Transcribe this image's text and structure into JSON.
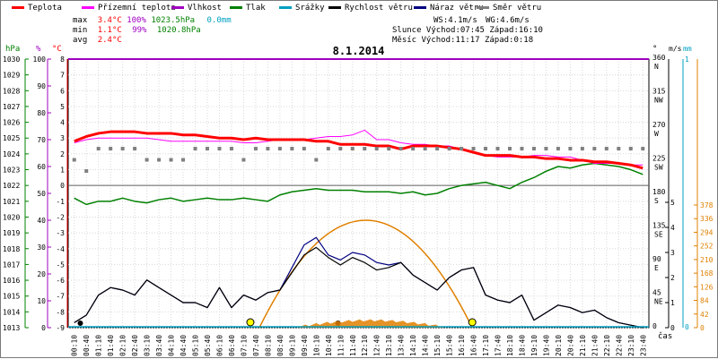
{
  "legend": {
    "items": [
      {
        "key": "teplota",
        "label": "Teplota",
        "color": "#ff0000"
      },
      {
        "key": "prizemni",
        "label": "Přízemní teplota",
        "color": "#ff00ff"
      },
      {
        "key": "vlhkost",
        "label": "Vlhkost",
        "color": "#a000c0"
      },
      {
        "key": "tlak",
        "label": "Tlak",
        "color": "#008000"
      },
      {
        "key": "srazky",
        "label": "Srážky",
        "color": "#00a0c0"
      },
      {
        "key": "rychlost",
        "label": "Rychlost větru",
        "color": "#000000"
      },
      {
        "key": "naraz",
        "label": "Náraz větru",
        "color": "#000080"
      },
      {
        "key": "smer",
        "label": "Směr větru",
        "color": "#808080"
      }
    ]
  },
  "stats": {
    "max": {
      "label": "max",
      "temp": "3.4°C",
      "hum": "100%",
      "press": "1023.5hPa",
      "rain": "0.0mm"
    },
    "min": {
      "label": "min",
      "temp": "1.1°C",
      "hum": "99%",
      "press": "1020.8hPa"
    },
    "avg": {
      "label": "avg",
      "temp": "2.4°C"
    },
    "ws": "WS:4.1m/s",
    "wg": "WG:4.6m/s",
    "slunce": "Slunce Východ:07:45  Západ:16:10",
    "mesic": "Měsíc  Východ:11:17  Západ:0:18"
  },
  "colors": {
    "temp": "#ff0000",
    "ground": "#ff00ff",
    "hum": "#a000c0",
    "press": "#008000",
    "rain": "#00a0c0",
    "speed": "#000000",
    "gust": "#000080",
    "dir": "#808080",
    "sun": "#e08000",
    "pressAxis": "#008000"
  },
  "chart_data": {
    "type": "line",
    "title": "8.1.2014",
    "xlabel": "čas",
    "x_ticks": [
      "00:10",
      "00:40",
      "01:10",
      "01:40",
      "02:10",
      "02:40",
      "03:10",
      "03:40",
      "04:10",
      "04:40",
      "05:10",
      "05:40",
      "06:10",
      "06:40",
      "07:10",
      "07:40",
      "08:10",
      "08:40",
      "09:10",
      "09:40",
      "10:10",
      "10:40",
      "11:10",
      "11:40",
      "12:10",
      "12:40",
      "13:10",
      "13:40",
      "14:10",
      "14:40",
      "15:10",
      "15:40",
      "16:10",
      "16:40",
      "17:10",
      "17:40",
      "18:10",
      "18:40",
      "19:10",
      "19:40",
      "20:10",
      "20:40",
      "21:10",
      "21:40",
      "22:10",
      "22:40",
      "23:10",
      "23:40"
    ],
    "axes": {
      "hpa": {
        "label": "hPa",
        "range": [
          1013,
          1030
        ],
        "ticks": [
          "1030",
          "1029",
          "1028",
          "1027",
          "1026",
          "1025",
          "1024",
          "1023",
          "1022",
          "1021",
          "1020",
          "1019",
          "1018",
          "1017",
          "1016",
          "1015",
          "1014",
          "1013"
        ]
      },
      "percent": {
        "label": "%",
        "range": [
          0,
          100
        ],
        "ticks": [
          "100",
          "90",
          "80",
          "70",
          "60",
          "50",
          "40",
          "30",
          "20",
          "10",
          "0"
        ]
      },
      "celsius": {
        "label": "°C",
        "range": [
          -9,
          8
        ],
        "ticks": [
          "8",
          "7",
          "6",
          "5",
          "4",
          "3",
          "2",
          "1",
          "0",
          "-1",
          "-2",
          "-3",
          "-4",
          "-5",
          "-6",
          "-7",
          "-8",
          "-9"
        ]
      },
      "direction": {
        "label": "°",
        "ticks": [
          {
            "deg": "360",
            "dir": "N"
          },
          {
            "deg": "315",
            "dir": "NW"
          },
          {
            "deg": "270",
            "dir": "W"
          },
          {
            "deg": "225",
            "dir": "SW"
          },
          {
            "deg": "180",
            "dir": "S"
          },
          {
            "deg": "135",
            "dir": "SE"
          },
          {
            "deg": "90",
            "dir": "E"
          },
          {
            "deg": "45",
            "dir": "NE"
          },
          {
            "deg": "0",
            "dir": ""
          }
        ]
      },
      "speed": {
        "label": "m/s",
        "ticks": [
          "5",
          "4",
          "3",
          "2",
          "1",
          "0"
        ]
      },
      "rain": {
        "label": "mm",
        "ticks": [
          "1",
          "0"
        ]
      },
      "solar": {
        "ticks": [
          "378",
          "336",
          "294",
          "252",
          "210",
          "168",
          "126",
          "84",
          "42",
          "0"
        ]
      }
    },
    "series": [
      {
        "name": "Teplota",
        "unit": "°C",
        "values": [
          2.8,
          3.1,
          3.3,
          3.4,
          3.4,
          3.4,
          3.3,
          3.3,
          3.3,
          3.2,
          3.2,
          3.1,
          3.0,
          3.0,
          2.9,
          3.0,
          2.9,
          2.9,
          2.9,
          2.9,
          2.8,
          2.8,
          2.6,
          2.6,
          2.6,
          2.5,
          2.5,
          2.3,
          2.5,
          2.5,
          2.5,
          2.4,
          2.3,
          2.1,
          1.9,
          1.9,
          1.9,
          1.8,
          1.8,
          1.7,
          1.7,
          1.6,
          1.6,
          1.5,
          1.5,
          1.4,
          1.3,
          1.1
        ]
      },
      {
        "name": "Přízemní teplota",
        "unit": "°C",
        "values": [
          2.7,
          2.9,
          3.0,
          3.0,
          3.0,
          3.0,
          3.0,
          2.9,
          2.8,
          2.8,
          2.8,
          2.8,
          2.8,
          2.8,
          2.7,
          2.7,
          2.8,
          2.9,
          2.9,
          2.9,
          3.0,
          3.1,
          3.1,
          3.2,
          3.5,
          2.9,
          2.9,
          2.7,
          2.6,
          2.6,
          2.5,
          2.5,
          2.3,
          2.1,
          1.9,
          1.8,
          1.8,
          1.8,
          1.9,
          1.9,
          1.8,
          1.8,
          1.6,
          1.4,
          1.4,
          1.4,
          1.3,
          1.3
        ]
      },
      {
        "name": "Vlhkost",
        "unit": "%",
        "values": [
          100,
          100,
          100,
          100,
          100,
          100,
          100,
          100,
          100,
          100,
          100,
          100,
          100,
          100,
          100,
          100,
          100,
          100,
          100,
          100,
          100,
          100,
          100,
          100,
          100,
          100,
          100,
          100,
          100,
          100,
          100,
          100,
          100,
          100,
          100,
          100,
          100,
          100,
          100,
          100,
          100,
          100,
          100,
          100,
          100,
          100,
          100,
          100
        ]
      },
      {
        "name": "Tlak",
        "unit": "hPa",
        "values": [
          1021.2,
          1020.8,
          1021.0,
          1021.0,
          1021.2,
          1021.0,
          1020.9,
          1021.1,
          1021.2,
          1021.0,
          1021.1,
          1021.2,
          1021.1,
          1021.1,
          1021.2,
          1021.1,
          1021.0,
          1021.4,
          1021.6,
          1021.7,
          1021.8,
          1021.7,
          1021.7,
          1021.7,
          1021.6,
          1021.6,
          1021.6,
          1021.5,
          1021.6,
          1021.4,
          1021.5,
          1021.8,
          1022.0,
          1022.1,
          1022.2,
          1022.0,
          1021.8,
          1022.2,
          1022.5,
          1022.9,
          1023.2,
          1023.1,
          1023.3,
          1023.4,
          1023.3,
          1023.2,
          1023.0,
          1022.7
        ]
      },
      {
        "name": "Srážky",
        "unit": "mm",
        "values": [
          0,
          0,
          0,
          0,
          0,
          0,
          0,
          0,
          0,
          0,
          0,
          0,
          0,
          0,
          0,
          0,
          0,
          0,
          0,
          0,
          0,
          0,
          0,
          0,
          0,
          0,
          0,
          0,
          0,
          0,
          0,
          0,
          0,
          0,
          0,
          0,
          0,
          0,
          0,
          0,
          0,
          0,
          0,
          0,
          0,
          0,
          0,
          0
        ]
      },
      {
        "name": "Rychlost větru",
        "unit": "m/s",
        "values": [
          0.2,
          0.5,
          1.3,
          1.6,
          1.5,
          1.3,
          1.9,
          1.6,
          1.3,
          1.0,
          1.0,
          0.8,
          1.6,
          0.8,
          1.3,
          1.1,
          1.4,
          1.5,
          2.2,
          2.9,
          3.2,
          2.8,
          2.5,
          2.8,
          2.6,
          2.3,
          2.4,
          2.6,
          2.1,
          1.8,
          1.5,
          2.0,
          2.3,
          2.4,
          1.3,
          1.1,
          1.0,
          1.3,
          0.3,
          0.6,
          0.9,
          0.8,
          0.6,
          0.7,
          0.4,
          0.2,
          0.1,
          0.0
        ]
      },
      {
        "name": "Náraz větru",
        "unit": "m/s",
        "values": [
          0.2,
          0.5,
          1.3,
          1.6,
          1.5,
          1.3,
          1.9,
          1.6,
          1.3,
          1.0,
          1.0,
          0.8,
          1.6,
          0.8,
          1.3,
          1.1,
          1.4,
          1.5,
          2.4,
          3.3,
          3.6,
          2.9,
          2.7,
          3.0,
          2.9,
          2.6,
          2.5,
          2.6,
          2.1,
          1.8,
          1.5,
          2.0,
          2.3,
          2.4,
          1.3,
          1.1,
          1.0,
          1.3,
          0.3,
          0.6,
          0.9,
          0.8,
          0.6,
          0.7,
          0.4,
          0.2,
          0.1,
          0.0
        ]
      },
      {
        "name": "Směr větru",
        "unit": "°",
        "values": [
          225,
          210,
          240,
          240,
          240,
          240,
          225,
          225,
          225,
          225,
          240,
          240,
          240,
          240,
          225,
          240,
          240,
          240,
          240,
          240,
          225,
          240,
          240,
          240,
          240,
          240,
          240,
          240,
          240,
          240,
          240,
          240,
          240,
          240,
          240,
          240,
          240,
          240,
          240,
          240,
          240,
          240,
          240,
          240,
          240,
          240,
          240,
          240
        ]
      }
    ],
    "grid": true
  }
}
